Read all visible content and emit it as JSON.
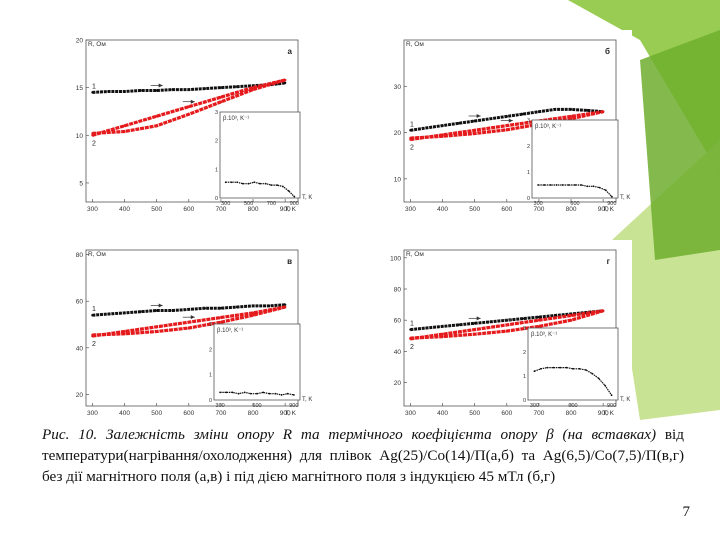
{
  "slide": {
    "page_number": "7",
    "accent_color": "#8dc63f",
    "caption_lead": "Рис. 10. Залежність зміни опору R та термічного коефіцієнта опору β (на вставках)",
    "caption_rest": " від температури(нагрівання/охолодження) для плівок Ag(25)/Co(14)/П(а,б) та Ag(6,5)/Co(7,5)/П(в,г) без дії магнітного поля (а,в) і під дією магнітного поля з індукцією 45 мТл (б,г)"
  },
  "chart_data": [
    {
      "type": "line",
      "panel_label": "а",
      "ylabel": "R, Ом",
      "xlabel": "T, K",
      "xticks": [
        "300",
        "400",
        "500",
        "600",
        "700",
        "800",
        "900"
      ],
      "yticks": [
        "5",
        "10",
        "15",
        "20"
      ],
      "xlim": [
        280,
        940
      ],
      "ylim": [
        3,
        20
      ],
      "series": [
        {
          "name": "1",
          "color": "#111111",
          "x": [
            300,
            350,
            400,
            450,
            500,
            550,
            600,
            650,
            700,
            750,
            800,
            850,
            880,
            900
          ],
          "y": [
            14.5,
            14.6,
            14.6,
            14.7,
            14.7,
            14.8,
            14.8,
            14.9,
            15.0,
            15.1,
            15.2,
            15.3,
            15.4,
            15.5
          ]
        },
        {
          "name": "2",
          "color": "#e41a1c",
          "x": [
            300,
            400,
            500,
            600,
            700,
            800,
            900
          ],
          "y": [
            10.0,
            11.0,
            12.0,
            13.0,
            14.0,
            15.0,
            15.8
          ]
        },
        {
          "name": "",
          "color": "#e41a1c",
          "x": [
            300,
            400,
            500,
            600,
            700,
            800,
            900
          ],
          "y": [
            10.2,
            10.4,
            11.0,
            12.2,
            13.5,
            14.8,
            15.8
          ]
        }
      ],
      "inset": {
        "ylabel": "β.10³, K⁻¹",
        "xlabel": "T, K",
        "xticks": [
          "300",
          "500",
          "700",
          "900"
        ],
        "yticks": [
          "0",
          "1",
          "2",
          "3"
        ],
        "xlim": [
          250,
          950
        ],
        "ylim": [
          0,
          3
        ],
        "x": [
          300,
          350,
          400,
          450,
          500,
          550,
          600,
          650,
          700,
          750,
          800,
          850,
          900
        ],
        "y": [
          0.55,
          0.55,
          0.55,
          0.5,
          0.5,
          0.55,
          0.5,
          0.5,
          0.45,
          0.45,
          0.4,
          0.25,
          0.05
        ]
      }
    },
    {
      "type": "line",
      "panel_label": "б",
      "ylabel": "R, Ом",
      "xlabel": "T, K",
      "xticks": [
        "300",
        "400",
        "500",
        "600",
        "700",
        "800",
        "900"
      ],
      "yticks": [
        "10",
        "20",
        "30"
      ],
      "xlim": [
        280,
        940
      ],
      "ylim": [
        5,
        40
      ],
      "series": [
        {
          "name": "1",
          "color": "#111111",
          "x": [
            300,
            350,
            400,
            450,
            500,
            550,
            600,
            650,
            700,
            750,
            800,
            850,
            900
          ],
          "y": [
            20.5,
            21.0,
            21.5,
            22.0,
            22.5,
            23.0,
            23.5,
            24.0,
            24.5,
            25.0,
            25.0,
            24.8,
            24.5
          ]
        },
        {
          "name": "2",
          "color": "#e41a1c",
          "x": [
            300,
            400,
            500,
            600,
            700,
            800,
            900
          ],
          "y": [
            18.5,
            19.5,
            20.5,
            21.5,
            22.5,
            23.5,
            24.5
          ]
        },
        {
          "name": "",
          "color": "#e41a1c",
          "x": [
            300,
            400,
            500,
            600,
            700,
            800,
            900
          ],
          "y": [
            18.8,
            19.2,
            19.8,
            20.6,
            21.8,
            23.0,
            24.5
          ]
        }
      ],
      "inset": {
        "ylabel": "β.10³, K⁻¹",
        "xlabel": "T, K",
        "xticks": [
          "300",
          "600",
          "900"
        ],
        "yticks": [
          "0",
          "1",
          "2",
          "3"
        ],
        "xlim": [
          250,
          950
        ],
        "ylim": [
          0,
          3
        ],
        "x": [
          300,
          350,
          400,
          450,
          500,
          550,
          600,
          650,
          700,
          750,
          800,
          850,
          900
        ],
        "y": [
          0.5,
          0.5,
          0.5,
          0.5,
          0.5,
          0.5,
          0.5,
          0.5,
          0.45,
          0.45,
          0.4,
          0.3,
          0.05
        ]
      }
    },
    {
      "type": "line",
      "panel_label": "в",
      "ylabel": "R, Ом",
      "xlabel": "T, K",
      "xticks": [
        "300",
        "400",
        "500",
        "600",
        "700",
        "800",
        "900"
      ],
      "yticks": [
        "20",
        "40",
        "60",
        "80"
      ],
      "xlim": [
        280,
        940
      ],
      "ylim": [
        15,
        82
      ],
      "series": [
        {
          "name": "1",
          "color": "#111111",
          "x": [
            300,
            350,
            400,
            450,
            500,
            550,
            600,
            650,
            700,
            750,
            800,
            850,
            900
          ],
          "y": [
            54,
            54.5,
            55,
            55.5,
            56,
            56,
            56.5,
            57,
            57,
            57.5,
            58,
            58,
            58.5
          ]
        },
        {
          "name": "2",
          "color": "#e41a1c",
          "x": [
            300,
            400,
            500,
            600,
            700,
            800,
            900
          ],
          "y": [
            45,
            47,
            49,
            51,
            53,
            55,
            57.5
          ]
        },
        {
          "name": "",
          "color": "#e41a1c",
          "x": [
            300,
            400,
            500,
            600,
            700,
            800,
            900
          ],
          "y": [
            45.5,
            46,
            47,
            48.5,
            51,
            54,
            57.5
          ]
        }
      ],
      "inset": {
        "ylabel": "β.10³, K⁻¹",
        "xlabel": "T, K",
        "xticks": [
          "300",
          "600",
          "900"
        ],
        "yticks": [
          "0",
          "1",
          "2",
          "3"
        ],
        "xlim": [
          250,
          950
        ],
        "ylim": [
          0,
          3
        ],
        "x": [
          300,
          350,
          400,
          450,
          500,
          550,
          600,
          650,
          700,
          750,
          800,
          850,
          900
        ],
        "y": [
          0.3,
          0.3,
          0.3,
          0.25,
          0.3,
          0.25,
          0.25,
          0.3,
          0.25,
          0.25,
          0.2,
          0.25,
          0.2
        ]
      }
    },
    {
      "type": "line",
      "panel_label": "г",
      "ylabel": "R, Ом",
      "xlabel": "T, K",
      "xticks": [
        "300",
        "400",
        "500",
        "600",
        "700",
        "800",
        "900"
      ],
      "yticks": [
        "20",
        "40",
        "60",
        "80",
        "100"
      ],
      "xlim": [
        280,
        940
      ],
      "ylim": [
        5,
        105
      ],
      "series": [
        {
          "name": "1",
          "color": "#111111",
          "x": [
            300,
            350,
            400,
            450,
            500,
            550,
            600,
            650,
            700,
            750,
            800,
            850,
            900
          ],
          "y": [
            54,
            55,
            56,
            57,
            58,
            59,
            60,
            61,
            62,
            63,
            64,
            65,
            66
          ]
        },
        {
          "name": "2",
          "color": "#e41a1c",
          "x": [
            300,
            400,
            500,
            600,
            700,
            800,
            900
          ],
          "y": [
            48,
            51,
            54,
            57,
            60,
            63,
            66
          ]
        },
        {
          "name": "",
          "color": "#e41a1c",
          "x": [
            300,
            400,
            500,
            600,
            700,
            800,
            900
          ],
          "y": [
            48.5,
            49.5,
            51,
            53,
            56,
            60,
            66
          ]
        }
      ],
      "inset": {
        "ylabel": "β.10³, K⁻¹",
        "xlabel": "T, K",
        "xticks": [
          "300",
          "600",
          "900"
        ],
        "yticks": [
          "0",
          "1",
          "2",
          "3"
        ],
        "xlim": [
          250,
          950
        ],
        "ylim": [
          0,
          3
        ],
        "x": [
          300,
          350,
          400,
          450,
          500,
          550,
          600,
          650,
          700,
          750,
          800,
          850,
          900
        ],
        "y": [
          1.2,
          1.3,
          1.35,
          1.35,
          1.35,
          1.35,
          1.3,
          1.3,
          1.25,
          1.1,
          0.9,
          0.6,
          0.2
        ]
      }
    }
  ]
}
